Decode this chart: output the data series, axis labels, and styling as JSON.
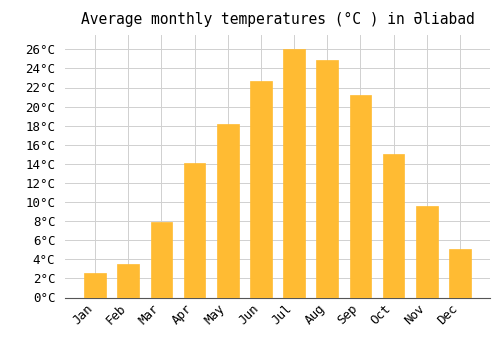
{
  "title": "Average monthly temperatures (°C ) in Əliabad",
  "months": [
    "Jan",
    "Feb",
    "Mar",
    "Apr",
    "May",
    "Jun",
    "Jul",
    "Aug",
    "Sep",
    "Oct",
    "Nov",
    "Dec"
  ],
  "temperatures": [
    2.6,
    3.5,
    7.9,
    14.1,
    18.2,
    22.7,
    26.0,
    24.9,
    21.2,
    15.0,
    9.6,
    5.1
  ],
  "bar_color_top": "#FFC04C",
  "bar_color_bottom": "#FFA500",
  "yticks": [
    0,
    2,
    4,
    6,
    8,
    10,
    12,
    14,
    16,
    18,
    20,
    22,
    24,
    26
  ],
  "ylim": [
    0,
    27.5
  ],
  "background_color": "#ffffff",
  "grid_color": "#d0d0d0",
  "title_fontsize": 10.5,
  "tick_fontsize": 9
}
